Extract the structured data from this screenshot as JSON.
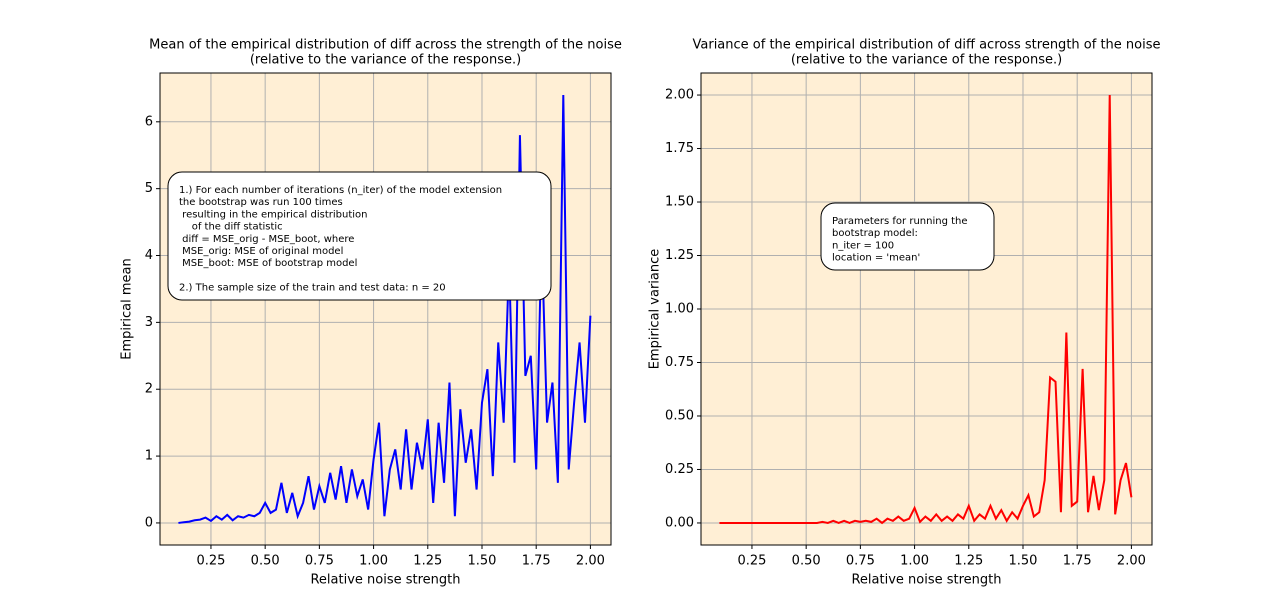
{
  "chart_data": [
    {
      "type": "line",
      "title": "Mean of the empirical distribution of diff across the strength of the noise",
      "subtitle": "(relative to the variance of the response.)",
      "x_label": "Relative noise strength",
      "y_label": "Empirical mean",
      "annotation": [
        "1.) For each number of iterations (n_iter) of the model extension",
        "the bootstrap was run 100 times",
        " resulting in the empirical distribution",
        "    of the diff statistic",
        " diff = MSE_orig - MSE_boot, where",
        " MSE_orig: MSE of original model",
        " MSE_boot: MSE of bootstrap model"
      ],
      "annotation_2": "2.) The sample size of the train and test data: n = 20",
      "x": [
        0.1,
        0.125,
        0.15,
        0.175,
        0.2,
        0.225,
        0.25,
        0.275,
        0.3,
        0.325,
        0.35,
        0.375,
        0.4,
        0.425,
        0.45,
        0.475,
        0.5,
        0.525,
        0.55,
        0.575,
        0.6,
        0.625,
        0.65,
        0.675,
        0.7,
        0.725,
        0.75,
        0.775,
        0.8,
        0.825,
        0.85,
        0.875,
        0.9,
        0.925,
        0.95,
        0.975,
        1.0,
        1.025,
        1.05,
        1.075,
        1.1,
        1.125,
        1.15,
        1.175,
        1.2,
        1.225,
        1.25,
        1.275,
        1.3,
        1.325,
        1.35,
        1.375,
        1.4,
        1.425,
        1.45,
        1.475,
        1.5,
        1.525,
        1.55,
        1.575,
        1.6,
        1.625,
        1.65,
        1.675,
        1.7,
        1.725,
        1.75,
        1.775,
        1.8,
        1.825,
        1.85,
        1.875,
        1.9,
        1.925,
        1.95,
        1.975,
        2.0
      ],
      "values": [
        0,
        0.01,
        0.02,
        0.04,
        0.05,
        0.08,
        0.03,
        0.1,
        0.05,
        0.12,
        0.04,
        0.1,
        0.08,
        0.12,
        0.1,
        0.15,
        0.3,
        0.15,
        0.2,
        0.6,
        0.15,
        0.45,
        0.1,
        0.3,
        0.7,
        0.2,
        0.55,
        0.3,
        0.75,
        0.35,
        0.85,
        0.3,
        0.8,
        0.4,
        0.65,
        0.2,
        0.95,
        1.5,
        0.1,
        0.8,
        1.1,
        0.5,
        1.4,
        0.5,
        1.2,
        0.8,
        1.55,
        0.3,
        1.5,
        0.6,
        2.1,
        0.1,
        1.7,
        0.9,
        1.4,
        0.5,
        1.8,
        2.3,
        0.7,
        2.7,
        1.5,
        3.9,
        0.9,
        5.8,
        2.2,
        2.5,
        0.8,
        4.3,
        1.5,
        2.1,
        0.6,
        6.4,
        0.8,
        1.8,
        2.7,
        1.5,
        3.1
      ],
      "color": "#0000ff",
      "background": "#ffefd5",
      "grid": true,
      "xlim": [
        0.015,
        2.095
      ],
      "ylim": [
        -0.33,
        6.73
      ],
      "xticks": [
        0.25,
        {
          "value": 0.5,
          "label": "0.50"
        },
        0.75,
        {
          "value": 1.0,
          "label": "1.00"
        },
        1.25,
        {
          "value": 1.5,
          "label": "1.50"
        },
        1.75,
        {
          "value": 2.0,
          "label": "2.00"
        }
      ],
      "yticks": [
        0,
        1,
        2,
        3,
        4,
        5,
        6
      ]
    },
    {
      "type": "line",
      "title": "Variance of the empirical distribution of diff across strength of the noise",
      "subtitle": "(relative to the variance of the response.)",
      "x_label": "Relative noise strength",
      "y_label": "Empirical variance",
      "annotation": [
        "Parameters for running the",
        "bootstrap model:",
        "n_iter = 100",
        "location = 'mean'"
      ],
      "x": [
        0.1,
        0.125,
        0.15,
        0.175,
        0.2,
        0.225,
        0.25,
        0.275,
        0.3,
        0.325,
        0.35,
        0.375,
        0.4,
        0.425,
        0.45,
        0.475,
        0.5,
        0.525,
        0.55,
        0.575,
        0.6,
        0.625,
        0.65,
        0.675,
        0.7,
        0.725,
        0.75,
        0.775,
        0.8,
        0.825,
        0.85,
        0.875,
        0.9,
        0.925,
        0.95,
        0.975,
        1.0,
        1.025,
        1.05,
        1.075,
        1.1,
        1.125,
        1.15,
        1.175,
        1.2,
        1.225,
        1.25,
        1.275,
        1.3,
        1.325,
        1.35,
        1.375,
        1.4,
        1.425,
        1.45,
        1.475,
        1.5,
        1.525,
        1.55,
        1.575,
        1.6,
        1.625,
        1.65,
        1.675,
        1.7,
        1.725,
        1.75,
        1.775,
        1.8,
        1.825,
        1.85,
        1.875,
        1.9,
        1.925,
        1.95,
        1.975,
        2.0
      ],
      "values": [
        0,
        0,
        0,
        0,
        0,
        0,
        0,
        0,
        0,
        0,
        0,
        0,
        0,
        0,
        0,
        0,
        0,
        0,
        0,
        0.005,
        0,
        0.01,
        0,
        0.01,
        0,
        0.01,
        0.005,
        0.01,
        0.005,
        0.02,
        0,
        0.02,
        0.01,
        0.03,
        0.01,
        0.02,
        0.07,
        0.005,
        0.03,
        0.01,
        0.04,
        0.01,
        0.03,
        0.01,
        0.04,
        0.02,
        0.08,
        0.01,
        0.04,
        0.02,
        0.08,
        0.02,
        0.06,
        0.01,
        0.05,
        0.02,
        0.08,
        0.13,
        0.03,
        0.05,
        0.2,
        0.68,
        0.66,
        0.05,
        0.89,
        0.08,
        0.1,
        0.72,
        0.05,
        0.22,
        0.06,
        0.2,
        2.0,
        0.04,
        0.2,
        0.28,
        0.12
      ],
      "color": "#ff0000",
      "background": "#ffefd5",
      "grid": true,
      "xlim": [
        0.015,
        2.095
      ],
      "ylim": [
        -0.103,
        2.103
      ],
      "xticks": [
        0.25,
        {
          "value": 0.5,
          "label": "0.50"
        },
        0.75,
        {
          "value": 1.0,
          "label": "1.00"
        },
        1.25,
        {
          "value": 1.5,
          "label": "1.50"
        },
        1.75,
        {
          "value": 2.0,
          "label": "2.00"
        }
      ],
      "yticks": [
        {
          "value": 0,
          "label": "0.00"
        },
        0.25,
        {
          "value": 0.5,
          "label": "0.50"
        },
        0.75,
        {
          "value": 1.0,
          "label": "1.00"
        },
        1.25,
        {
          "value": 1.5,
          "label": "1.50"
        },
        1.75,
        {
          "value": 2.0,
          "label": "2.00"
        }
      ]
    }
  ]
}
